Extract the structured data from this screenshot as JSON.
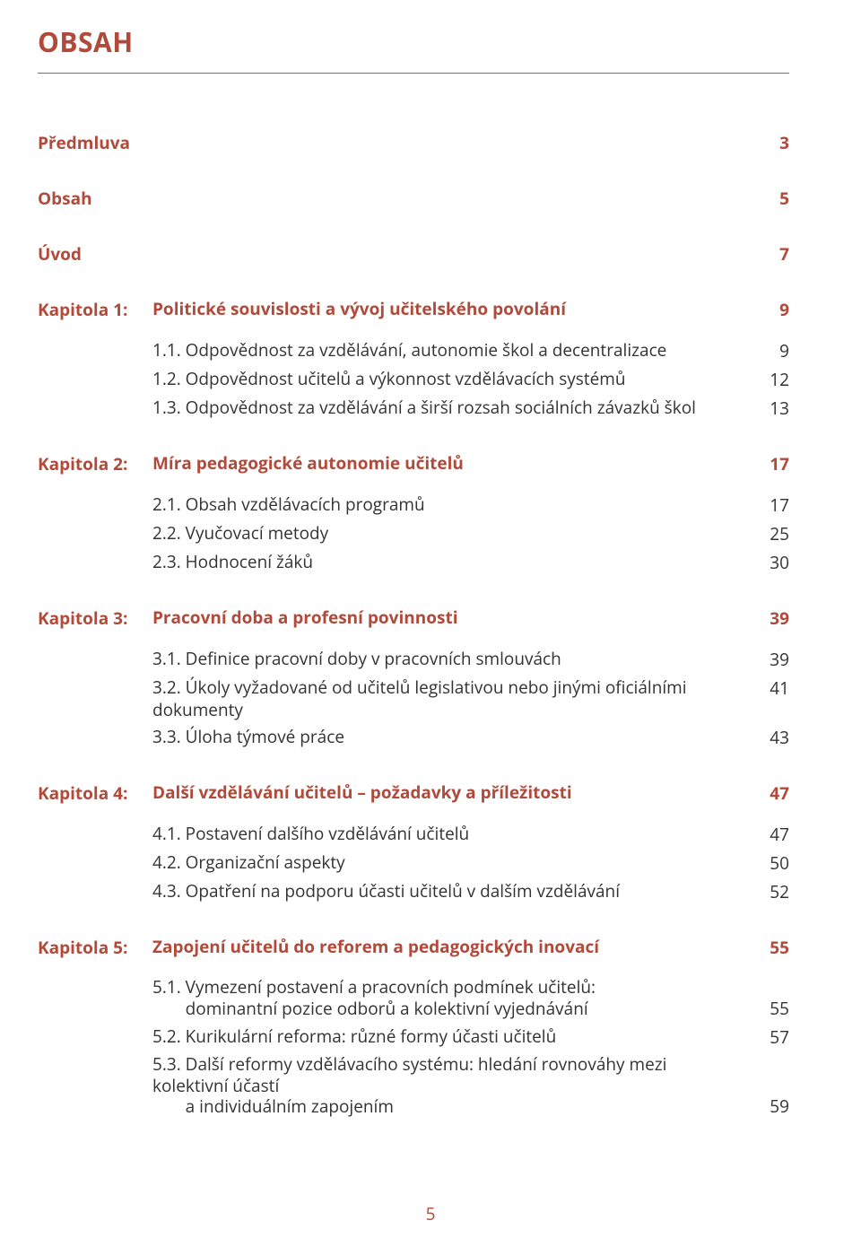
{
  "colors": {
    "accent": "#b04a3a",
    "text": "#333333",
    "rule": "#b5584b",
    "background": "#ffffff"
  },
  "typography": {
    "title_fontsize": 30,
    "body_fontsize": 19,
    "bold_weight": 700,
    "regular_weight": 400,
    "font_family": "Myriad Pro / Segoe UI / Open Sans"
  },
  "layout": {
    "label_col_width": 128,
    "page_col_width": 46,
    "gap_lg": 36,
    "gap_md": 20,
    "gap_sm": 6
  },
  "title": "OBSAH",
  "page_number": "5",
  "toc": {
    "predmluva": {
      "label": "Předmluva",
      "page": "3"
    },
    "obsah": {
      "label": "Obsah",
      "page": "5"
    },
    "uvod": {
      "label": "Úvod",
      "page": "7"
    },
    "k1": {
      "label": "Kapitola 1:",
      "title": "Politické souvislosti a vývoj učitelského povolání",
      "page": "9",
      "s1": {
        "num": "1.1.",
        "text": "Odpovědnost za vzdělávání, autonomie škol a decentralizace",
        "page": "9"
      },
      "s2": {
        "num": "1.2.",
        "text": "Odpovědnost učitelů a výkonnost vzdělávacích systémů",
        "page": "12"
      },
      "s3": {
        "num": "1.3.",
        "text": "Odpovědnost za vzdělávání a širší rozsah sociálních závazků škol",
        "page": "13"
      }
    },
    "k2": {
      "label": "Kapitola 2:",
      "title": "Míra pedagogické autonomie učitelů",
      "page": "17",
      "s1": {
        "num": "2.1.",
        "text": "Obsah vzdělávacích programů",
        "page": "17"
      },
      "s2": {
        "num": "2.2.",
        "text": "Vyučovací metody",
        "page": "25"
      },
      "s3": {
        "num": "2.3.",
        "text": "Hodnocení žáků",
        "page": "30"
      }
    },
    "k3": {
      "label": "Kapitola 3:",
      "title": "Pracovní doba a profesní povinnosti",
      "page": "39",
      "s1": {
        "num": "3.1.",
        "text": "Definice pracovní doby v pracovních smlouvách",
        "page": "39"
      },
      "s2": {
        "num": "3.2.",
        "text": "Úkoly vyžadované od učitelů legislativou nebo jinými oficiálními dokumenty",
        "page": "41"
      },
      "s3": {
        "num": "3.3.",
        "text": "Úloha týmové práce",
        "page": "43"
      }
    },
    "k4": {
      "label": "Kapitola 4:",
      "title": "Další vzdělávání učitelů – požadavky a příležitosti",
      "page": "47",
      "s1": {
        "num": "4.1.",
        "text": "Postavení dalšího vzdělávání učitelů",
        "page": "47"
      },
      "s2": {
        "num": "4.2.",
        "text": "Organizační aspekty",
        "page": "50"
      },
      "s3": {
        "num": "4.3.",
        "text": "Opatření na podporu účasti učitelů v dalším vzdělávání",
        "page": "52"
      }
    },
    "k5": {
      "label": "Kapitola 5:",
      "title": "Zapojení učitelů do reforem a pedagogických inovací",
      "page": "55",
      "s1": {
        "num": "5.1.",
        "text_l1": "Vymezení postavení a pracovních podmínek učitelů:",
        "text_l2": "dominantní pozice odborů a kolektivní vyjednávání",
        "page": "55"
      },
      "s2": {
        "num": "5.2.",
        "text": "Kurikulární reforma: různé formy účasti učitelů",
        "page": "57"
      },
      "s3": {
        "num": "5.3.",
        "text_l1": "Další reformy vzdělávacího systému: hledání rovnováhy mezi kolektivní účastí",
        "text_l2": "a individuálním zapojením",
        "page": "59"
      }
    }
  }
}
